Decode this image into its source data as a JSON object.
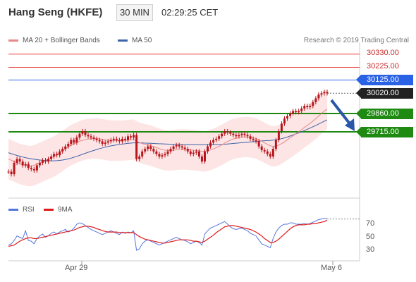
{
  "header": {
    "symbol": "Hang Seng (HKFE)",
    "timeframe": "30 MIN",
    "time": "02:29:25 CET"
  },
  "legend": {
    "ma20_label": "MA 20 + Bollinger Bands",
    "ma50_label": "MA 50",
    "research": "Research © 2019 Trading Central",
    "rsi_label": "RSI",
    "ma9_label": "9MA"
  },
  "colors": {
    "resistance_red": "#e8413c",
    "pivot_blue": "#2a62e6",
    "support_green": "#1e8a12",
    "ma20": "#e88888",
    "ma50": "#3d63a8",
    "bollinger_fill": "#fde2e2",
    "candle": "#b8141b",
    "rsi": "#5577dd",
    "rsi_ma": "#e01a1a",
    "arrow": "#2a57a8"
  },
  "price_levels": [
    {
      "value": 30330.0,
      "label": "30330.00",
      "kind": "resistance"
    },
    {
      "value": 30225.0,
      "label": "30225.00",
      "kind": "resistance"
    },
    {
      "value": 30125.0,
      "label": "30125.00",
      "kind": "pivot"
    },
    {
      "value": 30020.0,
      "label": "30020.00",
      "kind": "last"
    },
    {
      "value": 29860.0,
      "label": "29860.00",
      "kind": "support"
    },
    {
      "value": 29715.0,
      "label": "29715.00",
      "kind": "support"
    }
  ],
  "chart_data": {
    "type": "line",
    "title": "Hang Seng (HKFE)",
    "x_labels": [
      "Apr 29",
      "May 6"
    ],
    "price_range": [
      29250,
      30400
    ],
    "close": [
      29400,
      29380,
      29470,
      29500,
      29480,
      29450,
      29460,
      29430,
      29420,
      29410,
      29450,
      29470,
      29490,
      29480,
      29500,
      29520,
      29540,
      29530,
      29560,
      29580,
      29600,
      29620,
      29650,
      29630,
      29670,
      29700,
      29720,
      29690,
      29680,
      29670,
      29660,
      29650,
      29640,
      29620,
      29630,
      29640,
      29650,
      29660,
      29650,
      29640,
      29660,
      29650,
      29680,
      29670,
      29690,
      29500,
      29520,
      29560,
      29580,
      29600,
      29580,
      29560,
      29540,
      29520,
      29530,
      29540,
      29560,
      29580,
      29600,
      29610,
      29600,
      29590,
      29580,
      29560,
      29540,
      29550,
      29560,
      29520,
      29480,
      29560,
      29600,
      29630,
      29650,
      29660,
      29680,
      29700,
      29720,
      29710,
      29700,
      29690,
      29680,
      29690,
      29700,
      29690,
      29680,
      29660,
      29650,
      29640,
      29600,
      29570,
      29560,
      29540,
      29520,
      29580,
      29650,
      29720,
      29780,
      29820,
      29840,
      29860,
      29880,
      29870,
      29880,
      29900,
      29920,
      29910,
      29920,
      29950,
      29980,
      30010,
      30020,
      30030,
      30020
    ],
    "ma20": [
      29500,
      29490,
      29480,
      29470,
      29460,
      29455,
      29450,
      29445,
      29445,
      29450,
      29460,
      29470,
      29480,
      29490,
      29500,
      29510,
      29520,
      29535,
      29550,
      29565,
      29580,
      29595,
      29610,
      29620,
      29630,
      29640,
      29648,
      29654,
      29658,
      29660,
      29662,
      29662,
      29660,
      29656,
      29652,
      29648,
      29646,
      29646,
      29646,
      29646,
      29646,
      29648,
      29650,
      29652,
      29654,
      29640,
      29630,
      29622,
      29616,
      29612,
      29605,
      29598,
      29590,
      29582,
      29575,
      29570,
      29568,
      29568,
      29570,
      29573,
      29575,
      29576,
      29576,
      29575,
      29572,
      29570,
      29568,
      29565,
      29560,
      29560,
      29565,
      29572,
      29580,
      29590,
      29600,
      29612,
      29625,
      29638,
      29650,
      29658,
      29664,
      29668,
      29672,
      29674,
      29674,
      29672,
      29668,
      29662,
      29652,
      29640,
      29628,
      29616,
      29605,
      29600,
      29602,
      29610,
      29622,
      29636,
      29652,
      29668,
      29684,
      29700,
      29716,
      29732,
      29750,
      29766,
      29782,
      29800,
      29820,
      29840,
      29860,
      29880,
      29895
    ],
    "ma50": [
      29550,
      29542,
      29535,
      29528,
      29522,
      29516,
      29511,
      29506,
      29502,
      29498,
      29495,
      29492,
      29490,
      29488,
      29487,
      29486,
      29486,
      29487,
      29489,
      29492,
      29496,
      29501,
      29507,
      29514,
      29521,
      29529,
      29537,
      29545,
      29553,
      29561,
      29568,
      29575,
      29582,
      29588,
      29594,
      29599,
      29604,
      29608,
      29612,
      29615,
      29618,
      29621,
      29624,
      29626,
      29628,
      29628,
      29628,
      29627,
      29626,
      29625,
      29624,
      29623,
      29622,
      29621,
      29620,
      29619,
      29618,
      29617,
      29616,
      29615,
      29614,
      29614,
      29614,
      29614,
      29614,
      29614,
      29614,
      29614,
      29613,
      29613,
      29613,
      29613,
      29613,
      29614,
      29615,
      29616,
      29617,
      29619,
      29621,
      29623,
      29625,
      29627,
      29629,
      29631,
      29633,
      29635,
      29637,
      29639,
      29641,
      29643,
      29645,
      29646,
      29647,
      29649,
      29652,
      29656,
      29661,
      29667,
      29674,
      29682,
      29690,
      29698,
      29707,
      29716,
      29725,
      29735,
      29745,
      29755,
      29766,
      29777,
      29788,
      29799,
      29810
    ],
    "bollinger_width": 160,
    "rsi": [
      38,
      40,
      45,
      52,
      50,
      48,
      60,
      45,
      44,
      40,
      48,
      52,
      55,
      50,
      52,
      56,
      58,
      55,
      58,
      60,
      62,
      58,
      60,
      64,
      70,
      72,
      71,
      68,
      65,
      62,
      60,
      58,
      56,
      54,
      56,
      58,
      60,
      58,
      56,
      54,
      58,
      56,
      58,
      57,
      60,
      30,
      32,
      40,
      44,
      46,
      44,
      42,
      40,
      38,
      40,
      42,
      44,
      46,
      48,
      50,
      48,
      46,
      45,
      43,
      40,
      42,
      44,
      42,
      38,
      55,
      60,
      64,
      66,
      68,
      70,
      72,
      74,
      70,
      66,
      63,
      62,
      63,
      64,
      62,
      60,
      56,
      54,
      52,
      46,
      40,
      38,
      36,
      34,
      48,
      58,
      64,
      68,
      70,
      70,
      72,
      72,
      70,
      70,
      70,
      71,
      70,
      71,
      73,
      75,
      77,
      78,
      79,
      78
    ],
    "rsi_ma": [
      36,
      37,
      38,
      41,
      44,
      46,
      48,
      49,
      49,
      48,
      48,
      49,
      50,
      51,
      52,
      53,
      54,
      55,
      56,
      57,
      58,
      59,
      60,
      61,
      63,
      65,
      66,
      67,
      67,
      66,
      65,
      63,
      62,
      60,
      59,
      58,
      58,
      58,
      58,
      57,
      57,
      57,
      57,
      57,
      57,
      54,
      51,
      49,
      47,
      46,
      45,
      44,
      43,
      42,
      41,
      41,
      42,
      43,
      44,
      45,
      46,
      46,
      46,
      46,
      45,
      44,
      44,
      43,
      42,
      44,
      47,
      50,
      53,
      57,
      60,
      63,
      66,
      67,
      68,
      68,
      67,
      66,
      65,
      64,
      63,
      62,
      60,
      58,
      55,
      52,
      48,
      45,
      42,
      42,
      44,
      47,
      51,
      55,
      59,
      63,
      66,
      68,
      69,
      69,
      69,
      70,
      70,
      71,
      71,
      72,
      73,
      74,
      76
    ],
    "rsi_ticks": [
      70,
      50,
      30
    ],
    "rsi_range": [
      15,
      90
    ]
  }
}
